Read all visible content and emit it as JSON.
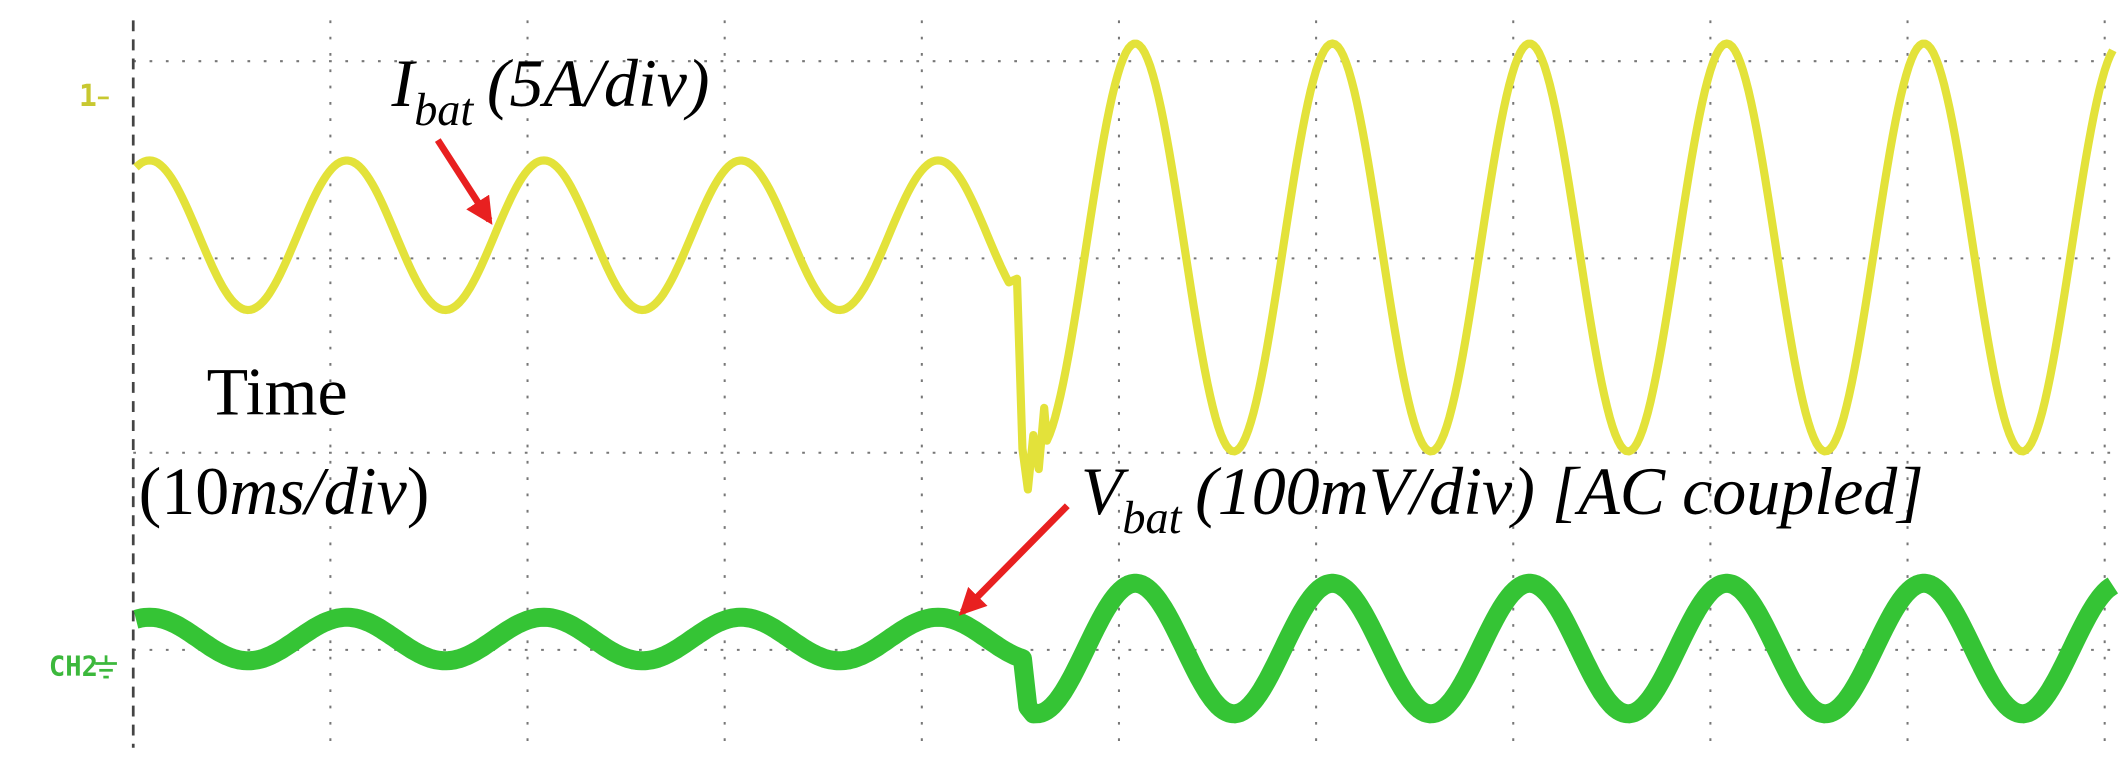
{
  "labels": {
    "current": {
      "symbol": "I",
      "subscript": "bat",
      "scale": "(5A/div)"
    },
    "time": {
      "line1": "Time",
      "open": "(10",
      "units": "ms/div",
      "close": ")"
    },
    "voltage": {
      "symbol": "V",
      "subscript": "bat",
      "scale": "(100mV/div) [AC coupled]"
    }
  },
  "markers": {
    "ch1": "1",
    "ch2": "CH2"
  }
}
